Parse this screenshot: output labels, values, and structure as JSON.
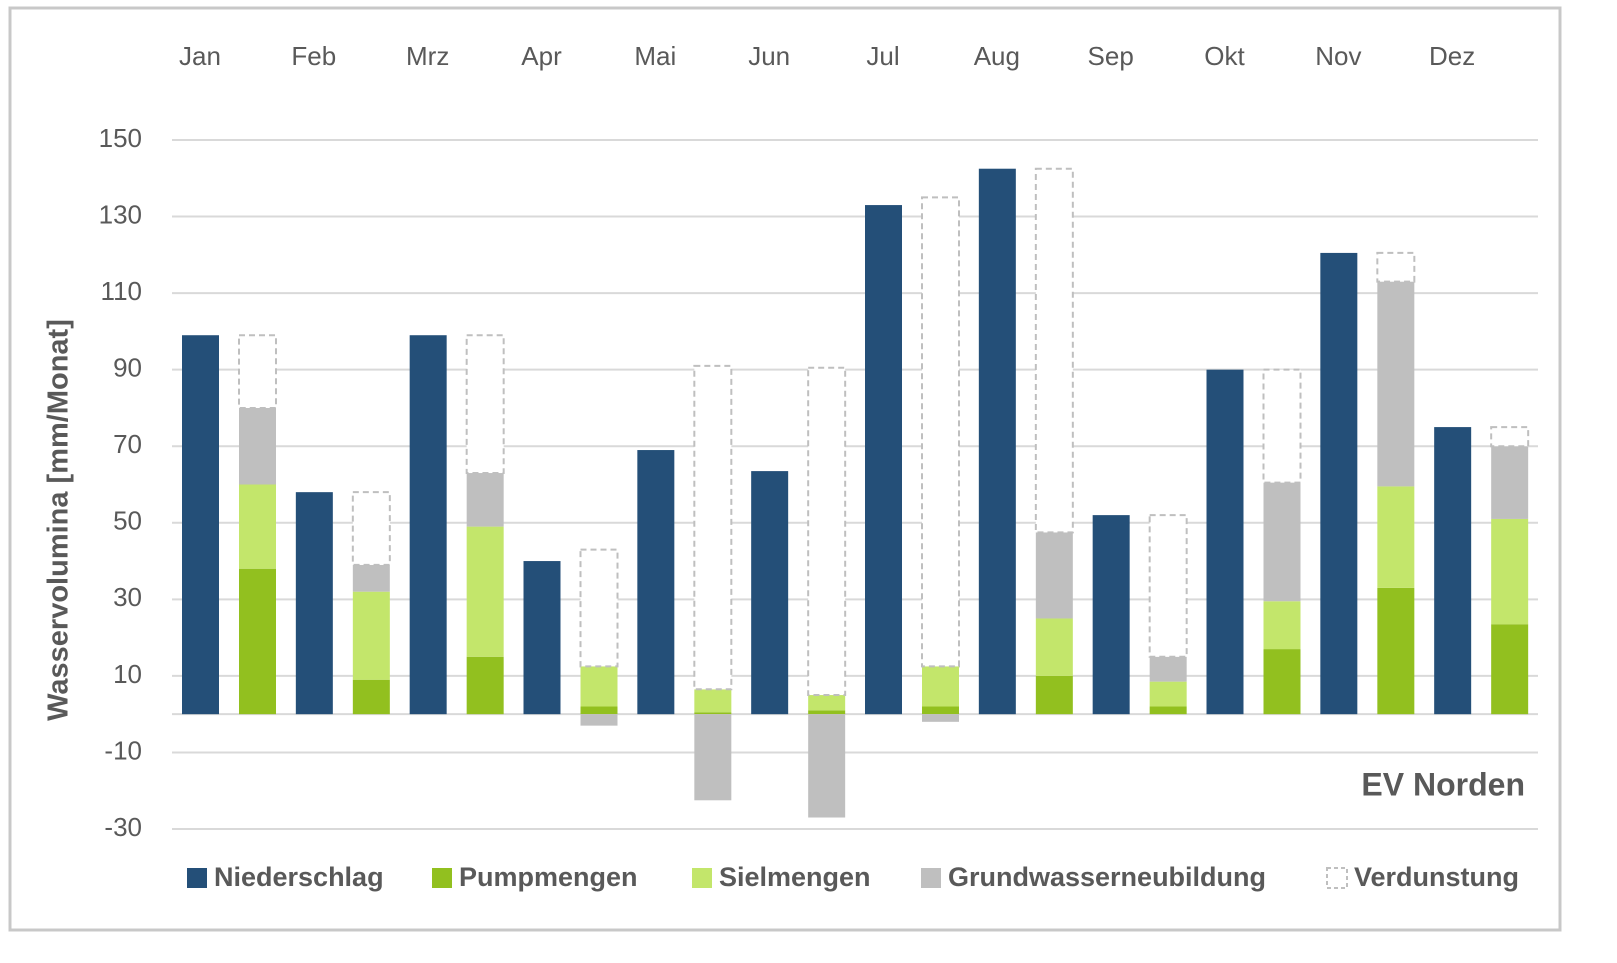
{
  "chart_data": {
    "type": "bar",
    "y_label": "Wasservolumina [mm/Monat]",
    "annotation": "EV Norden",
    "categories": [
      "Jan",
      "Feb",
      "Mrz",
      "Apr",
      "Mai",
      "Jun",
      "Jul",
      "Aug",
      "Sep",
      "Okt",
      "Nov",
      "Dez"
    ],
    "series": [
      {
        "name": "Niederschlag",
        "color": "#244f78",
        "stacked": false,
        "values": [
          99,
          58,
          99,
          40,
          69,
          63.5,
          133,
          142.5,
          52,
          90,
          120.5,
          75
        ]
      },
      {
        "name": "Pumpmengen",
        "color": "#92c01f",
        "stacked": true,
        "values": [
          38,
          9,
          15,
          2,
          0.5,
          1,
          2,
          10,
          2,
          17,
          33,
          23.5
        ]
      },
      {
        "name": "Sielmengen",
        "color": "#c3e66b",
        "stacked": true,
        "values": [
          22,
          23,
          34,
          10.5,
          6,
          4,
          10.5,
          15,
          6.5,
          12.5,
          26.5,
          27.5
        ]
      },
      {
        "name": "Grundwasserneubildung",
        "color": "#bfbfbf",
        "stacked": true,
        "values": [
          20,
          7,
          14,
          -3,
          -22.5,
          -27,
          -2,
          22.5,
          6.5,
          31,
          53.5,
          19
        ]
      },
      {
        "name": "Verdunstung",
        "color": "#bfbfbf",
        "stacked": true,
        "dashed": true,
        "values": [
          19,
          19,
          36,
          30.5,
          84.5,
          85.5,
          122.5,
          95,
          37,
          29.5,
          7.5,
          5
        ]
      }
    ],
    "ylim": [
      -30,
      150
    ],
    "yticks": [
      -30,
      -10,
      10,
      30,
      50,
      70,
      90,
      110,
      130,
      150
    ],
    "grid": true,
    "x_axis_position": "top",
    "legend": "bottom"
  }
}
